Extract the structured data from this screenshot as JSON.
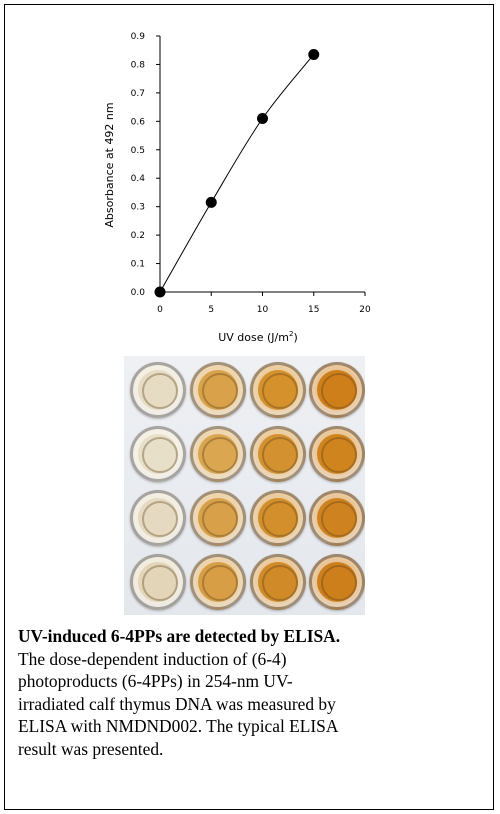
{
  "chart_data": {
    "type": "line",
    "title": "",
    "xlabel_base": "UV dose (J/m",
    "xlabel_sup": "2",
    "xlabel_end": ")",
    "ylabel": "Absorbance at 492 nm",
    "xlim": [
      0,
      20
    ],
    "ylim": [
      0,
      0.9
    ],
    "x_ticks": [
      "0",
      "5",
      "10",
      "15",
      "20"
    ],
    "y_ticks": [
      "0.0",
      "0.1",
      "0.2",
      "0.3",
      "0.4",
      "0.5",
      "0.6",
      "0.7",
      "0.8",
      "0.9"
    ],
    "grid": false,
    "series": [
      {
        "x": [
          0,
          5,
          10,
          15
        ],
        "y": [
          0.0,
          0.315,
          0.61,
          0.835
        ]
      }
    ]
  },
  "plate": {
    "wells": [
      [
        "#e6dcc4",
        "#d9a24a",
        "#d4912c",
        "#cf7f1a"
      ],
      [
        "#e8dfc8",
        "#daa650",
        "#d39130",
        "#d0841e"
      ],
      [
        "#e5dac1",
        "#d8a049",
        "#d38f2b",
        "#cf8320"
      ],
      [
        "#e2d5b8",
        "#d89e46",
        "#d08b28",
        "#cd7f1c"
      ]
    ]
  },
  "caption": {
    "title": "UV-induced 6-4PPs are detected by ELISA.",
    "line1": "The dose-dependent induction of (6-4)",
    "line2": "photoproducts (6-4PPs) in 254-nm UV-",
    "line3": "irradiated calf thymus DNA was measured by",
    "line4": "ELISA with NMDND002. The typical ELISA",
    "line5": "result was presented."
  }
}
